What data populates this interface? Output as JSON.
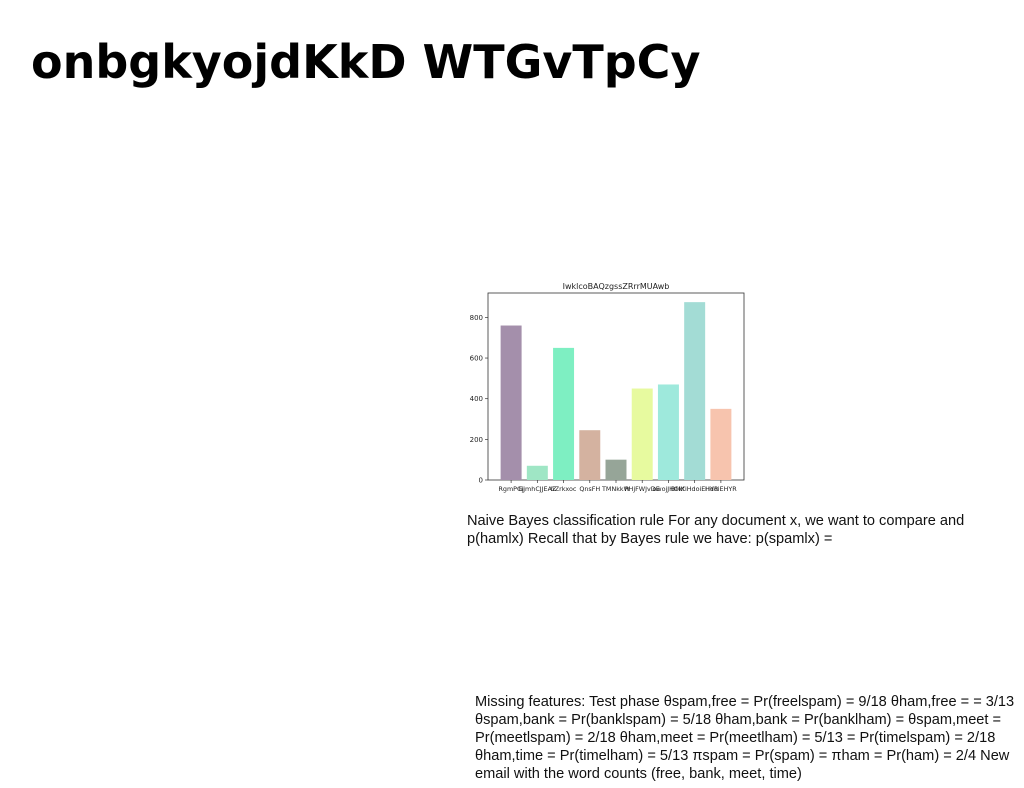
{
  "slide": {
    "title": "onbgkyojdKkD WTGvTpCy",
    "paragraph_1": "Naive Bayes classification rule For any document x, we want to compare and p(hamlx) Recall that by Bayes rule we have: p(spamlx) =",
    "paragraph_2": "Missing features: Test phase θspam,free = Pr(freelspam) = 9/18 θham,free = = 3/13 θspam,bank = Pr(banklspam) = 5/18 θham,bank = Pr(banklham) = θspam,meet = Pr(meetlspam) = 2/18 θham,meet = Pr(meetlham) = 5/13 = Pr(timelspam) = 2/18 θham,time = Pr(timelham) = 5/13 πspam = Pr(spam) = πham = Pr(ham) = 2/4 New email with the word counts (free, bank, meet, time)"
  },
  "chart_data": {
    "type": "bar",
    "title": "IwklcoBAQzgssZRrrMUAwb",
    "xlabel": "",
    "ylabel": "",
    "categories": [
      "RgmPGj",
      "GjmhCJJEAZ",
      "hZrkxoc",
      "QnsFH",
      "TMNkkW",
      "PHjFWJvDE",
      "owojJHCkf",
      "BMKiHdoiEHYR",
      "HdoiEHYR"
    ],
    "values": [
      760,
      70,
      650,
      245,
      100,
      450,
      470,
      875,
      350
    ],
    "colors": [
      "#a48fab",
      "#9fe6c5",
      "#7eefc2",
      "#d4b2a0",
      "#96a598",
      "#e7fa9f",
      "#9ee9dc",
      "#a3dcd5",
      "#f7c4ae"
    ],
    "yticks": [
      0,
      200,
      400,
      600,
      800
    ],
    "ylim": [
      0,
      920
    ],
    "grid": false
  }
}
